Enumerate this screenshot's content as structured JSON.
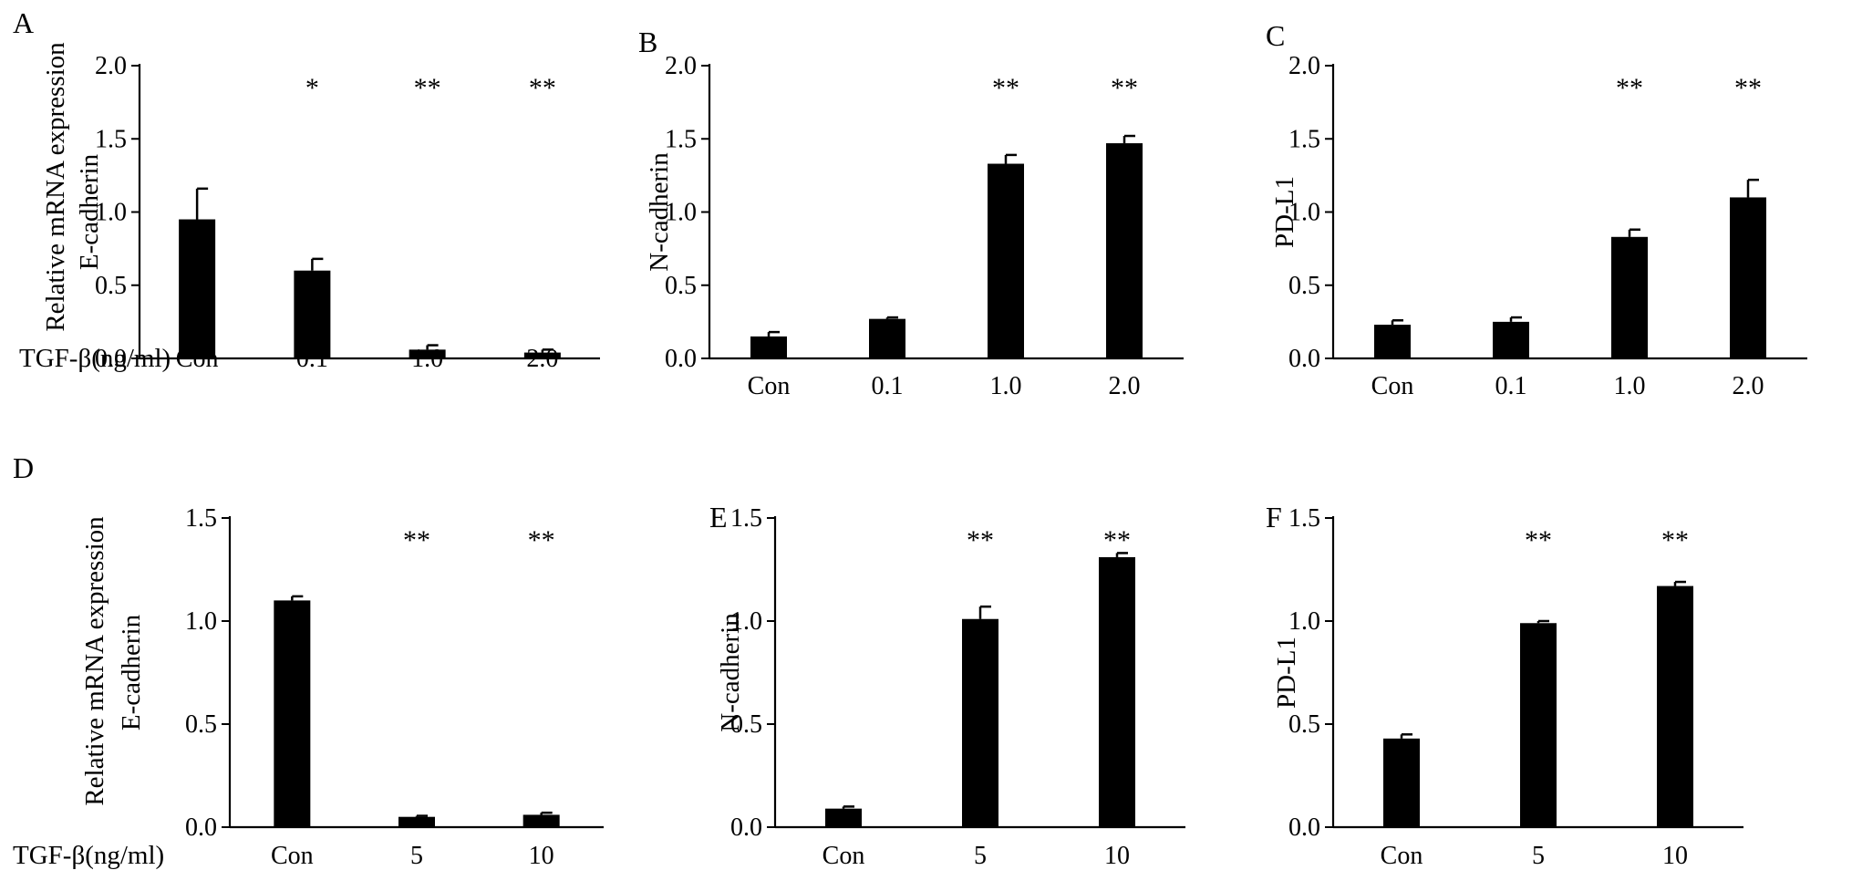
{
  "figure": {
    "row_label": "TGF-β(ng/ml)",
    "shared_ylabel": "Relative mRNA expression"
  },
  "chart_data": [
    {
      "panel": "A",
      "type": "bar",
      "ylabel": "E-cadherin",
      "categories": [
        "Con",
        "0.1",
        "1.0",
        "2.0"
      ],
      "values": [
        0.95,
        0.6,
        0.06,
        0.04
      ],
      "errors": [
        0.21,
        0.08,
        0.03,
        0.02
      ],
      "significance": [
        "",
        "*",
        "**",
        "**"
      ],
      "ylim": [
        0,
        2.0
      ],
      "yticks": [
        "0.0",
        "0.5",
        "1.0",
        "1.5",
        "2.0"
      ]
    },
    {
      "panel": "B",
      "type": "bar",
      "ylabel": "N-cadherin",
      "categories": [
        "Con",
        "0.1",
        "1.0",
        "2.0"
      ],
      "values": [
        0.15,
        0.27,
        1.33,
        1.47
      ],
      "errors": [
        0.03,
        0.01,
        0.06,
        0.05
      ],
      "significance": [
        "",
        "",
        "**",
        "**"
      ],
      "ylim": [
        0,
        2.0
      ],
      "yticks": [
        "0.0",
        "0.5",
        "1.0",
        "1.5",
        "2.0"
      ]
    },
    {
      "panel": "C",
      "type": "bar",
      "ylabel": "PD-L1",
      "categories": [
        "Con",
        "0.1",
        "1.0",
        "2.0"
      ],
      "values": [
        0.23,
        0.25,
        0.83,
        1.1
      ],
      "errors": [
        0.03,
        0.03,
        0.05,
        0.12
      ],
      "significance": [
        "",
        "",
        "**",
        "**"
      ],
      "ylim": [
        0,
        2.0
      ],
      "yticks": [
        "0.0",
        "0.5",
        "1.0",
        "1.5",
        "2.0"
      ]
    },
    {
      "panel": "D",
      "type": "bar",
      "ylabel": "E-cadherin",
      "categories": [
        "Con",
        "5",
        "10"
      ],
      "values": [
        1.1,
        0.05,
        0.06
      ],
      "errors": [
        0.02,
        0.005,
        0.01
      ],
      "significance": [
        "",
        "**",
        "**"
      ],
      "ylim": [
        0,
        1.5
      ],
      "yticks": [
        "0.0",
        "0.5",
        "1.0",
        "1.5"
      ]
    },
    {
      "panel": "E",
      "type": "bar",
      "ylabel": "N-cadherin",
      "categories": [
        "Con",
        "5",
        "10"
      ],
      "values": [
        0.09,
        1.01,
        1.31
      ],
      "errors": [
        0.01,
        0.06,
        0.02
      ],
      "significance": [
        "",
        "**",
        "**"
      ],
      "ylim": [
        0,
        1.5
      ],
      "yticks": [
        "0.0",
        "0.5",
        "1.0",
        "1.5"
      ]
    },
    {
      "panel": "F",
      "type": "bar",
      "ylabel": "PD-L1",
      "categories": [
        "Con",
        "5",
        "10"
      ],
      "values": [
        0.43,
        0.99,
        1.17
      ],
      "errors": [
        0.02,
        0.01,
        0.02
      ],
      "significance": [
        "",
        "**",
        "**"
      ],
      "ylim": [
        0,
        1.5
      ],
      "yticks": [
        "0.0",
        "0.5",
        "1.0",
        "1.5"
      ]
    }
  ]
}
